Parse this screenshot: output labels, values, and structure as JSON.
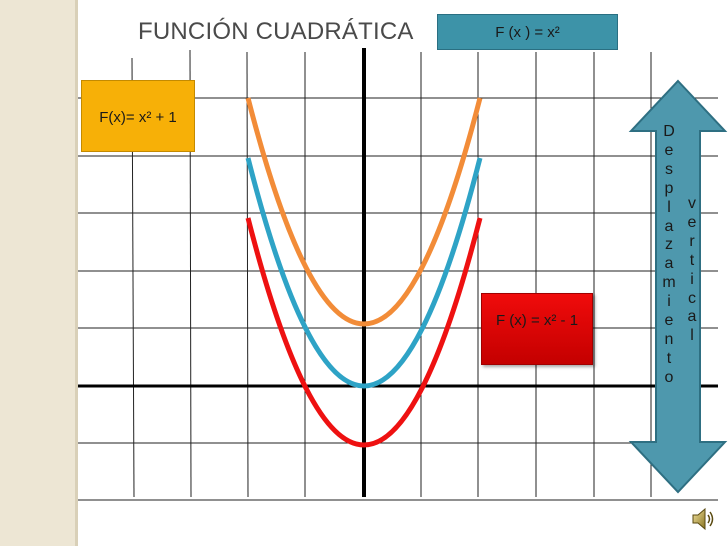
{
  "title": "FUNCIÓN CUADRÁTICA",
  "labels": {
    "base": "F (x ) = x²",
    "plus_one": "F(x)= x² + 1",
    "minus_one": "F (x) = x² - 1"
  },
  "arrow": {
    "col1": [
      "D",
      "e",
      "s",
      "p",
      "l",
      "a",
      "z",
      "a",
      "m",
      "i",
      "e",
      "n",
      "t",
      "o"
    ],
    "col2": [
      "v",
      "e",
      "r",
      "t",
      "i",
      "c",
      "a",
      "l"
    ]
  },
  "colors": {
    "orange_curve": "#f28c38",
    "blue_curve": "#2ea3c6",
    "red_curve": "#ee1111",
    "arrow_fill": "#4e98ad"
  },
  "icons": [
    "speaker-icon"
  ]
}
